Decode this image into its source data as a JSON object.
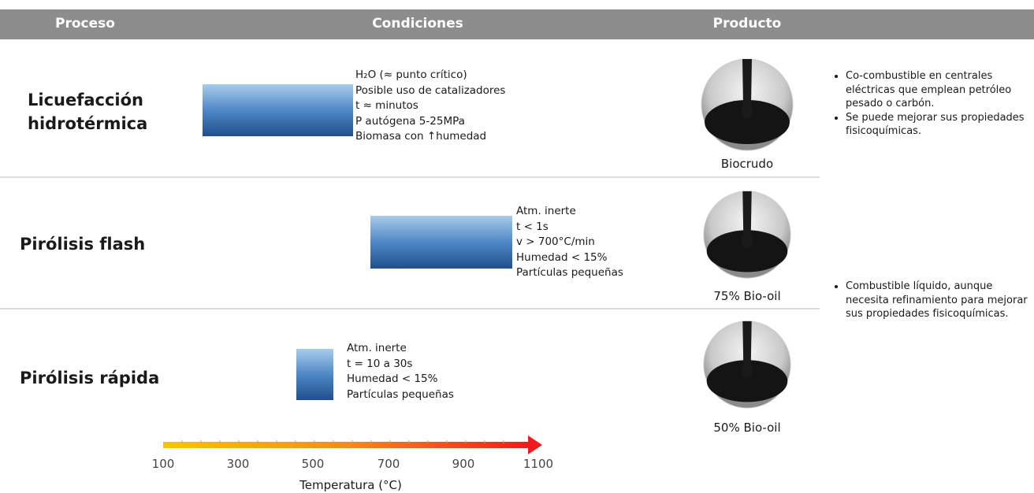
{
  "header": {
    "columns": [
      "Proceso",
      "Condiciones",
      "Producto"
    ]
  },
  "rows": [
    {
      "process": [
        "Licuefacción",
        "hidrotérmica"
      ],
      "conditions": [
        "H₂O (≈ punto crítico)",
        "Posible uso de catalizadores",
        "t ≈ minutos",
        "P autógena 5-25MPa",
        "Biomasa con ↑humedad"
      ],
      "product": "Biocrudo"
    },
    {
      "process": [
        "Pirólisis flash"
      ],
      "conditions": [
        "Atm. inerte",
        "t < 1s",
        "v > 700°C/min",
        "Humedad < 15%",
        "Partículas pequeñas"
      ],
      "product": "75% Bio-oil"
    },
    {
      "process": [
        "Pirólisis rápida"
      ],
      "conditions": [
        "Atm. inerte",
        "t = 10 a 30s",
        "Humedad < 15%",
        "Partículas pequeñas"
      ],
      "product": "50% Bio-oil"
    }
  ],
  "applications": [
    [
      "Co-combustible en centrales eléctricas que emplean petróleo pesado o carbón.",
      "Se puede mejorar sus propiedades fisicoquímicas."
    ],
    [
      "Combustible líquido, aunque necesita refinamiento para mejorar sus propiedades fisicoquímicas."
    ]
  ],
  "temperature_axis": {
    "ticks": [
      100,
      300,
      500,
      700,
      900,
      1100
    ],
    "label": "Temperatura (°C)"
  }
}
